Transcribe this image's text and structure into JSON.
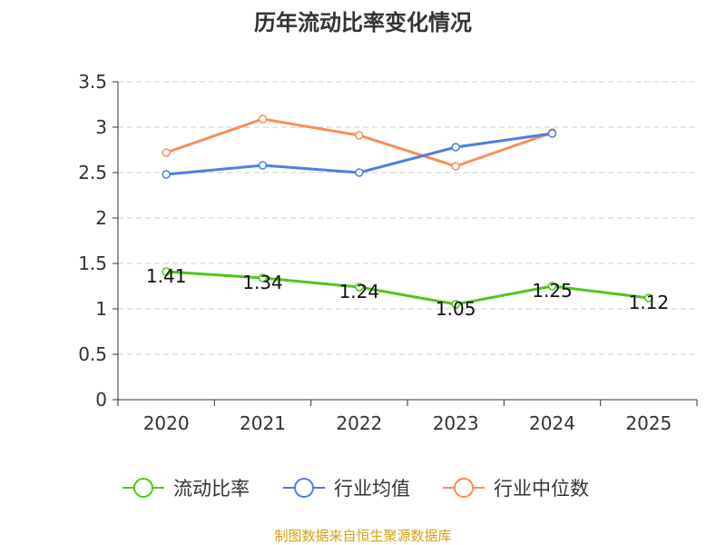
{
  "chart_data": {
    "type": "line",
    "title": "历年流动比率变化情况",
    "categories": [
      "2020",
      "2021",
      "2022",
      "2023",
      "2024",
      "2025"
    ],
    "ylim": [
      0,
      3.5
    ],
    "yticks": [
      "0",
      "0.5",
      "1",
      "1.5",
      "2",
      "2.5",
      "3",
      "3.5"
    ],
    "grid": true,
    "legend_position": "bottom",
    "series": [
      {
        "name": "流动比率",
        "color": "#52c41a",
        "values": [
          1.41,
          1.34,
          1.24,
          1.05,
          1.25,
          1.12
        ],
        "labels": [
          "1.41",
          "1.34",
          "1.24",
          "1.05",
          "1.25",
          "1.12"
        ]
      },
      {
        "name": "行业均值",
        "color": "#4e7fe0",
        "values": [
          2.48,
          2.58,
          2.5,
          2.78,
          2.93,
          null
        ]
      },
      {
        "name": "行业中位数",
        "color": "#ff8c55",
        "values": [
          2.72,
          3.09,
          2.91,
          2.57,
          2.94,
          null
        ]
      }
    ]
  },
  "footer": "制图数据来自恒生聚源数据库"
}
